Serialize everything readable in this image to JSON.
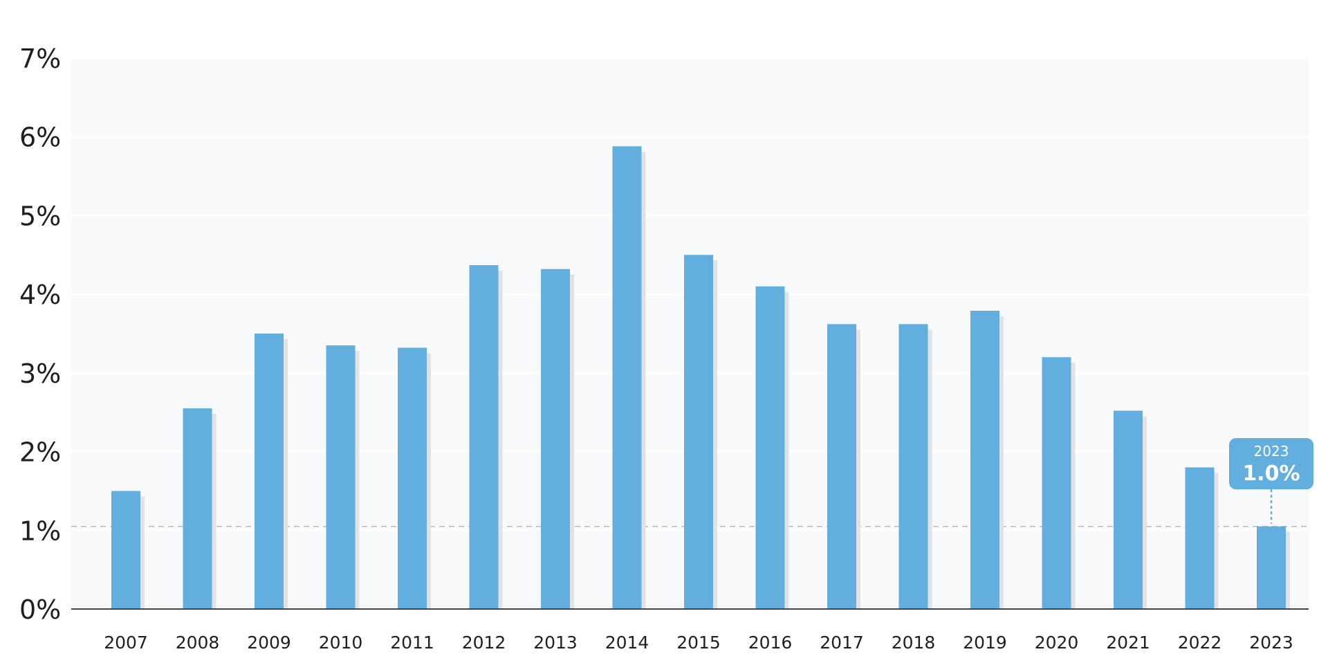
{
  "chart_data": {
    "type": "bar",
    "title": "",
    "xlabel": "",
    "ylabel": "",
    "categories": [
      "2007",
      "2008",
      "2009",
      "2010",
      "2011",
      "2012",
      "2013",
      "2014",
      "2015",
      "2016",
      "2017",
      "2018",
      "2019",
      "2020",
      "2021",
      "2022",
      "2023"
    ],
    "values": [
      1.5,
      2.55,
      3.5,
      3.35,
      3.32,
      4.37,
      4.32,
      5.88,
      4.5,
      4.1,
      3.62,
      3.62,
      3.79,
      3.2,
      2.52,
      1.8,
      1.05
    ],
    "ylim": [
      0,
      7
    ],
    "yticks": [
      "0%",
      "1%",
      "2%",
      "3%",
      "4%",
      "5%",
      "6%",
      "7%"
    ],
    "grid": true,
    "bar_color": "#62aedf",
    "shadow_color": "#e2e2e2",
    "plot_background": "#f8f9fb",
    "reference_line": {
      "value": 1.05,
      "style": "dashed"
    },
    "callout": {
      "year": "2023",
      "value": "1.0%",
      "color": "#62aedf"
    }
  }
}
